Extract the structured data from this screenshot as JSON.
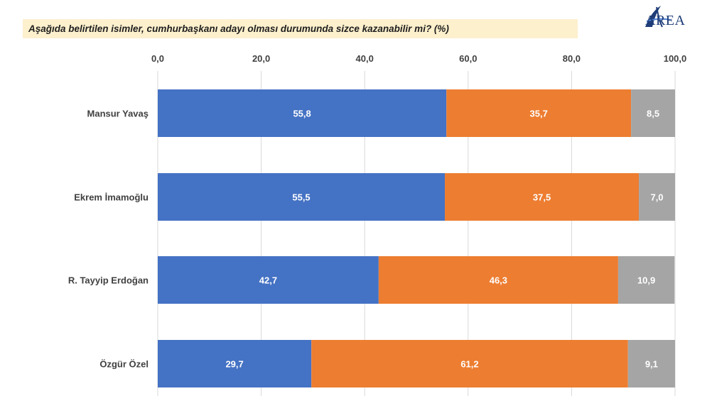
{
  "title": "Aşağıda belirtilen isimler, cumhurbaşkanı adayı olması durumunda sizce kazanabilir mi? (%)",
  "logo": {
    "text": "AREA"
  },
  "colors": {
    "banner": "#fdf0cd",
    "series": [
      "#4472c4",
      "#ed7d31",
      "#a5a5a5"
    ],
    "grid": "#d9d9d9",
    "label_text": "#ffffff",
    "axis_text": "#404040"
  },
  "chart_data": {
    "type": "bar",
    "orientation": "horizontal",
    "stacked": true,
    "categories": [
      "Mansur Yavaş",
      "Ekrem İmamoğlu",
      "R. Tayyip Erdoğan",
      "Özgür Özel"
    ],
    "series": [
      {
        "values": [
          55.8,
          55.5,
          42.7,
          29.7
        ]
      },
      {
        "values": [
          35.7,
          37.5,
          46.3,
          61.2
        ]
      },
      {
        "values": [
          8.5,
          7.0,
          10.9,
          9.1
        ]
      }
    ],
    "xlim": [
      0,
      100
    ],
    "ticks": [
      0,
      20,
      40,
      60,
      80,
      100
    ],
    "tick_labels": [
      "0,0",
      "20,0",
      "40,0",
      "60,0",
      "80,0",
      "100,0"
    ],
    "data_labels": [
      [
        "55,8",
        "55,5",
        "42,7",
        "29,7"
      ],
      [
        "35,7",
        "37,5",
        "46,3",
        "61,2"
      ],
      [
        "8,5",
        "7,0",
        "10,9",
        "9,1"
      ]
    ],
    "grid": true,
    "axis_position": "top"
  }
}
